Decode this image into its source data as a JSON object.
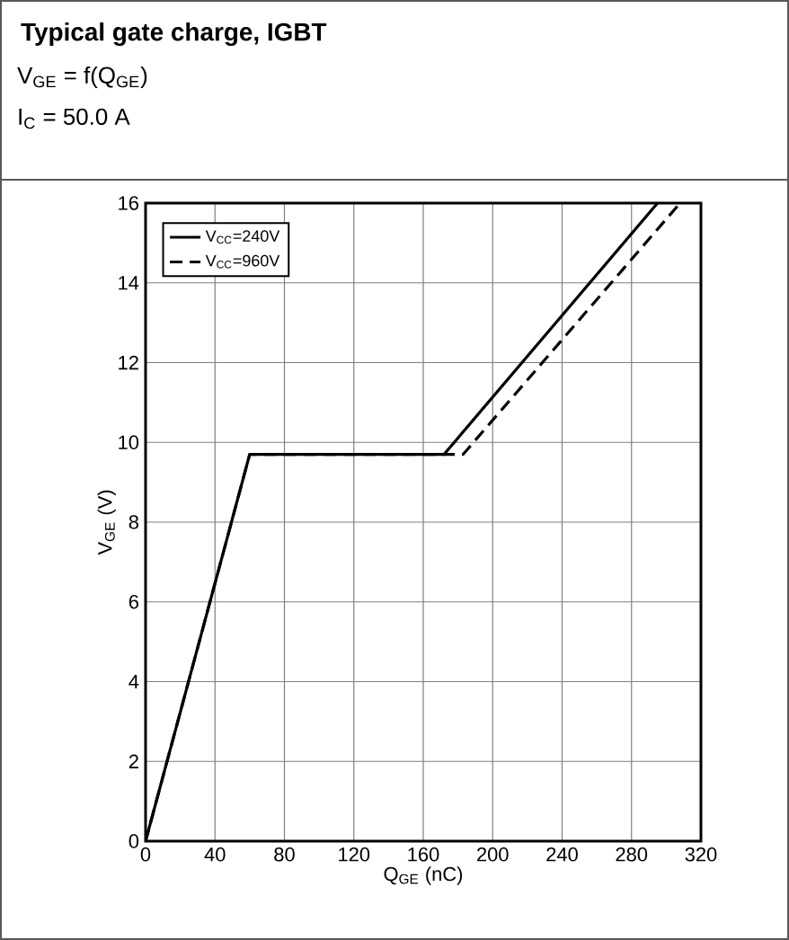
{
  "chart_data": {
    "type": "line",
    "title": "Typical gate charge, IGBT",
    "subtitle": "V$_{GE}$ = f(Q$_{GE}$)",
    "annotations": [
      "I$_{C}$ = 50.0 A"
    ],
    "xlabel": "Q$_{GE}$ (nC)",
    "ylabel": "V$_{GE}$ (V)",
    "xlim": [
      0,
      320
    ],
    "xticks": [
      0,
      40,
      80,
      120,
      160,
      200,
      240,
      280,
      320
    ],
    "ylim": [
      0,
      16
    ],
    "yticks": [
      0,
      2,
      4,
      6,
      8,
      10,
      12,
      14,
      16
    ],
    "grid": true,
    "legend": "top left",
    "marker": "none",
    "series": [
      {
        "name": "V$_{CC}$=240V",
        "color": "#000000",
        "line_style": "solid",
        "x": [
          0,
          60,
          172,
          295
        ],
        "values": [
          0,
          9.7,
          9.7,
          16
        ]
      },
      {
        "name": "V$_{CC}$=960V",
        "color": "#000000",
        "line_style": "dashed",
        "x": [
          0,
          60,
          183,
          308
        ],
        "values": [
          0,
          9.7,
          9.7,
          16
        ]
      }
    ]
  }
}
